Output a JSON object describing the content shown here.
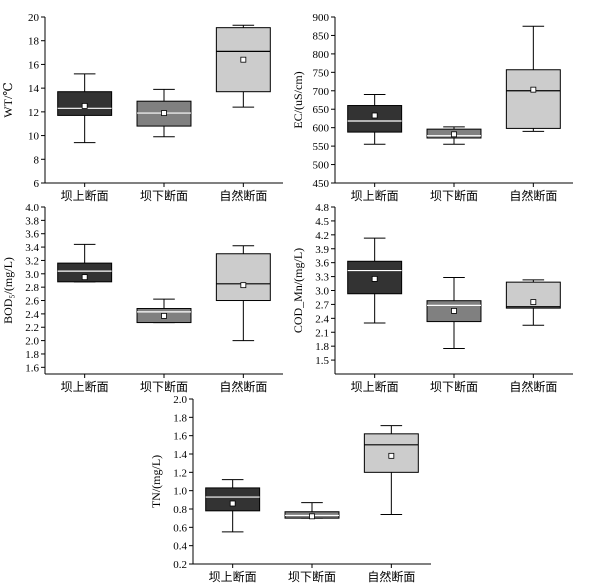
{
  "chart_data": [
    {
      "type": "box",
      "ylabel": "WT/℃",
      "ylim": [
        6,
        20
      ],
      "yticks": [
        "6",
        "8",
        "10",
        "12",
        "14",
        "16",
        "18",
        "20"
      ],
      "categories": [
        "坝上断面",
        "坝下断面",
        "自然断面"
      ],
      "boxes": [
        {
          "whisker_low": 9.4,
          "q1": 11.7,
          "median": 12.3,
          "q3": 13.7,
          "whisker_high": 15.2,
          "mean": 12.5,
          "fill": "#333333"
        },
        {
          "whisker_low": 9.9,
          "q1": 10.8,
          "median": 11.9,
          "q3": 12.9,
          "whisker_high": 13.9,
          "mean": 11.9,
          "fill": "#808080"
        },
        {
          "whisker_low": 12.4,
          "q1": 13.7,
          "median": 17.1,
          "q3": 19.1,
          "whisker_high": 19.3,
          "mean": 16.4,
          "fill": "#cccccc"
        }
      ]
    },
    {
      "type": "box",
      "ylabel": "EC/(uS/cm)",
      "ylim": [
        450,
        900
      ],
      "yticks": [
        "450",
        "500",
        "550",
        "600",
        "650",
        "700",
        "750",
        "800",
        "850",
        "900"
      ],
      "categories": [
        "坝上断面",
        "坝下断面",
        "自然断面"
      ],
      "boxes": [
        {
          "whisker_low": 555,
          "q1": 588,
          "median": 618,
          "q3": 660,
          "whisker_high": 690,
          "mean": 633,
          "fill": "#333333"
        },
        {
          "whisker_low": 555,
          "q1": 572,
          "median": 578,
          "q3": 596,
          "whisker_high": 602,
          "mean": 582,
          "fill": "#808080"
        },
        {
          "whisker_low": 590,
          "q1": 598,
          "median": 700,
          "q3": 757,
          "whisker_high": 875,
          "mean": 703,
          "fill": "#cccccc"
        }
      ]
    },
    {
      "type": "box",
      "ylabel": "BOD₅/(mg/L)",
      "ylim": [
        1.5,
        4.0
      ],
      "yticks": [
        "1.6",
        "1.8",
        "2.0",
        "2.2",
        "2.4",
        "2.6",
        "2.8",
        "3.0",
        "3.2",
        "3.4",
        "3.6",
        "3.8",
        "4.0"
      ],
      "categories": [
        "坝上断面",
        "坝下断面",
        "自然断面"
      ],
      "boxes": [
        {
          "whisker_low": 2.88,
          "q1": 2.88,
          "median": 3.04,
          "q3": 3.16,
          "whisker_high": 3.44,
          "mean": 2.95,
          "fill": "#333333"
        },
        {
          "whisker_low": 2.27,
          "q1": 2.27,
          "median": 2.43,
          "q3": 2.48,
          "whisker_high": 2.62,
          "mean": 2.37,
          "fill": "#808080"
        },
        {
          "whisker_low": 2.0,
          "q1": 2.6,
          "median": 2.85,
          "q3": 3.3,
          "whisker_high": 3.42,
          "mean": 2.83,
          "fill": "#cccccc"
        }
      ]
    },
    {
      "type": "box",
      "ylabel": "COD_Mn/(mg/L)",
      "ylim": [
        1.2,
        4.8
      ],
      "yticks": [
        "1.5",
        "1.8",
        "2.1",
        "2.4",
        "2.7",
        "3.0",
        "3.3",
        "3.6",
        "3.9",
        "4.2",
        "4.5",
        "4.8"
      ],
      "categories": [
        "坝上断面",
        "坝下断面",
        "自然断面"
      ],
      "boxes": [
        {
          "whisker_low": 2.3,
          "q1": 2.93,
          "median": 3.43,
          "q3": 3.63,
          "whisker_high": 4.13,
          "mean": 3.25,
          "fill": "#333333"
        },
        {
          "whisker_low": 1.75,
          "q1": 2.33,
          "median": 2.68,
          "q3": 2.78,
          "whisker_high": 3.28,
          "mean": 2.56,
          "fill": "#808080"
        },
        {
          "whisker_low": 2.25,
          "q1": 2.62,
          "median": 2.65,
          "q3": 3.18,
          "whisker_high": 3.23,
          "mean": 2.75,
          "fill": "#cccccc"
        }
      ]
    },
    {
      "type": "box",
      "ylabel": "TN/(mg/L)",
      "ylim": [
        0.2,
        2.0
      ],
      "yticks": [
        "0.2",
        "0.4",
        "0.6",
        "0.8",
        "1.0",
        "1.2",
        "1.4",
        "1.6",
        "1.8",
        "2.0"
      ],
      "categories": [
        "坝上断面",
        "坝下断面",
        "自然断面"
      ],
      "boxes": [
        {
          "whisker_low": 0.55,
          "q1": 0.78,
          "median": 0.93,
          "q3": 1.03,
          "whisker_high": 1.12,
          "mean": 0.86,
          "fill": "#333333"
        },
        {
          "whisker_low": 0.7,
          "q1": 0.7,
          "median": 0.73,
          "q3": 0.77,
          "whisker_high": 0.87,
          "mean": 0.72,
          "fill": "#808080"
        },
        {
          "whisker_low": 0.74,
          "q1": 1.2,
          "median": 1.5,
          "q3": 1.62,
          "whisker_high": 1.71,
          "mean": 1.38,
          "fill": "#cccccc"
        }
      ]
    }
  ]
}
